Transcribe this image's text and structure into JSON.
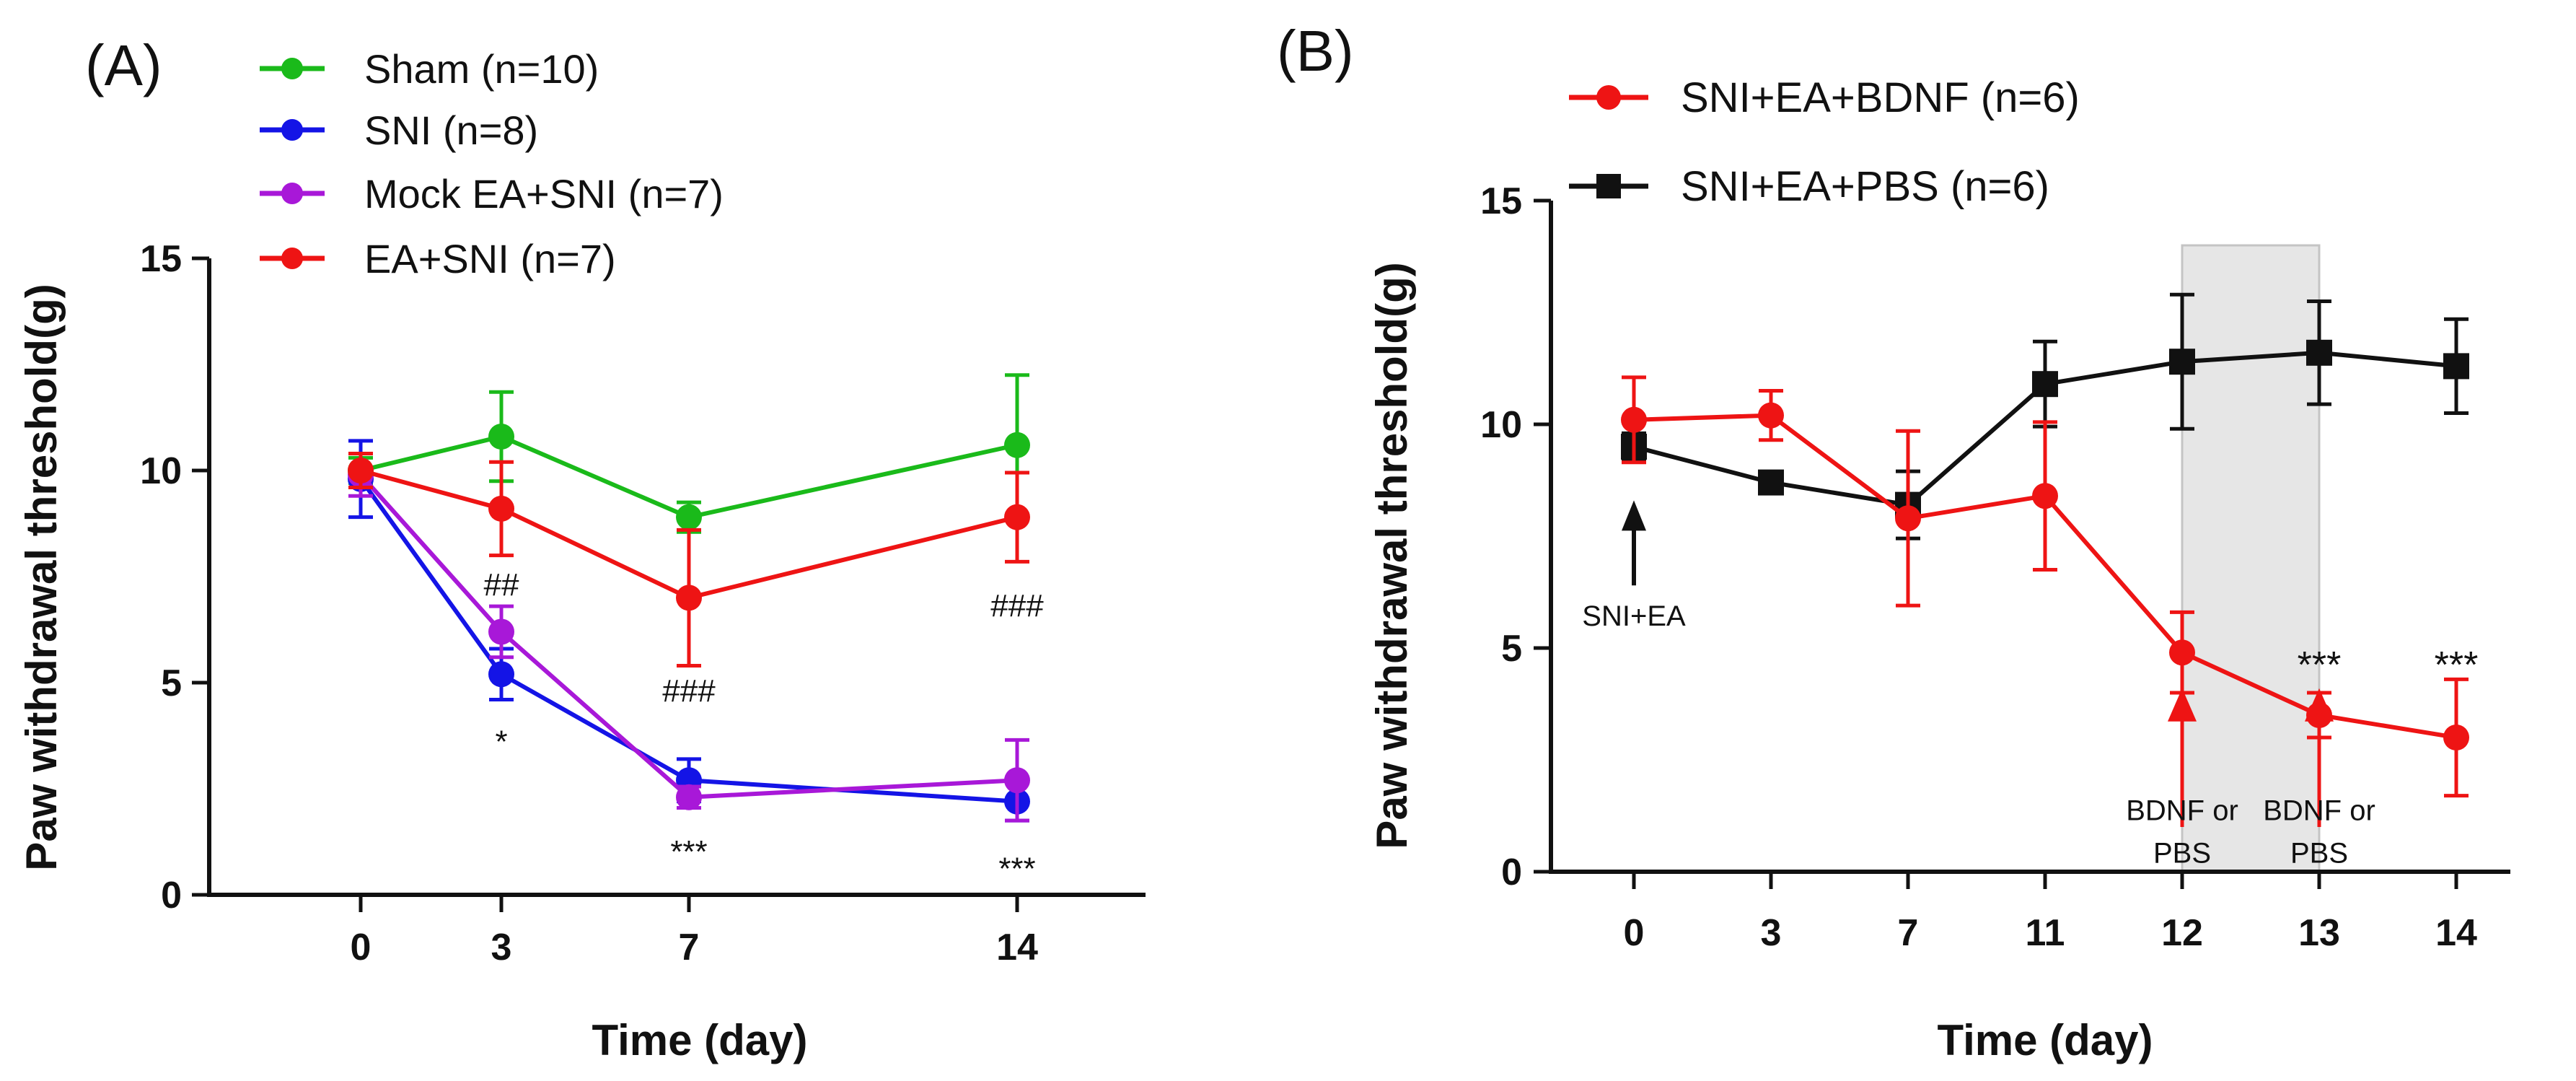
{
  "chart_data": [
    {
      "panel_label": "(A)",
      "type": "line",
      "ylabel": "Paw withdrawal threshold(g)",
      "xlabel": "Time (day)",
      "x": [
        0,
        3,
        7,
        14
      ],
      "x_tick_labels": [
        "0",
        "3",
        "7",
        "14"
      ],
      "ylim": [
        0,
        15
      ],
      "y_ticks": [
        0,
        5,
        10,
        15
      ],
      "legend_placement": "top",
      "series": [
        {
          "name": "Sham (n=10)",
          "color": "#1aba1a",
          "marker": "circle",
          "values": [
            10.0,
            10.8,
            8.9,
            10.6
          ],
          "errors": [
            0.3,
            1.05,
            0.35,
            1.65
          ]
        },
        {
          "name": "SNI (n=8)",
          "color": "#1414e6",
          "marker": "circle",
          "values": [
            9.8,
            5.2,
            2.7,
            2.2
          ],
          "errors": [
            0.9,
            0.6,
            0.5,
            0.45
          ]
        },
        {
          "name": "Mock EA+SNI (n=7)",
          "color": "#a818d8",
          "marker": "circle",
          "values": [
            9.9,
            6.2,
            2.3,
            2.7
          ],
          "errors": [
            0.5,
            0.6,
            0.25,
            0.95
          ]
        },
        {
          "name": "EA+SNI (n=7)",
          "color": "#ee1414",
          "marker": "circle",
          "values": [
            10.0,
            9.1,
            7.0,
            8.9
          ],
          "errors": [
            0.4,
            1.1,
            1.6,
            1.05
          ]
        }
      ],
      "annotations": [
        {
          "text": "##",
          "x": 3,
          "y": 7.3
        },
        {
          "text": "*",
          "x": 3,
          "y": 3.6
        },
        {
          "text": "###",
          "x": 7,
          "y": 4.8
        },
        {
          "text": "***",
          "x": 7,
          "y": 1.0
        },
        {
          "text": "###",
          "x": 14,
          "y": 6.8
        },
        {
          "text": "***",
          "x": 14,
          "y": 0.6
        }
      ]
    },
    {
      "panel_label": "(B)",
      "type": "line",
      "ylabel": "Paw withdrawal threshold(g)",
      "xlabel": "Time (day)",
      "x_tick_labels": [
        "0",
        "3",
        "7",
        "11",
        "12",
        "13",
        "14"
      ],
      "ylim": [
        0,
        15
      ],
      "y_ticks": [
        0,
        5,
        10,
        15
      ],
      "legend_placement": "top",
      "shaded_region": {
        "from": "12",
        "to": "13",
        "ymax": 14
      },
      "series": [
        {
          "name": "SNI+EA+BDNF (n=6)",
          "color": "#ee1414",
          "marker": "circle",
          "values": [
            10.1,
            10.2,
            7.9,
            8.4,
            4.9,
            3.5,
            3.0
          ],
          "errors": [
            0.95,
            0.55,
            1.95,
            1.65,
            0.9,
            0.5,
            1.3
          ]
        },
        {
          "name": "SNI+EA+PBS (n=6)",
          "color": "#111111",
          "marker": "square",
          "values": [
            9.5,
            8.7,
            8.2,
            10.9,
            11.4,
            11.6,
            11.3
          ],
          "errors": [
            0.3,
            0.2,
            0.75,
            0.95,
            1.5,
            1.15,
            1.05
          ]
        }
      ],
      "arrows": [
        {
          "label": "SNI+EA",
          "at": "0",
          "color": "#111111"
        },
        {
          "label_line1": "BDNF or",
          "label_line2": "PBS",
          "at": "12",
          "color": "#ee1414"
        },
        {
          "label_line1": "BDNF or",
          "label_line2": "PBS",
          "at": "13",
          "color": "#ee1414"
        }
      ],
      "annotations": [
        {
          "text": "***",
          "at": "13",
          "y": 4.6
        },
        {
          "text": "***",
          "at": "14",
          "y": 4.6
        }
      ]
    }
  ]
}
